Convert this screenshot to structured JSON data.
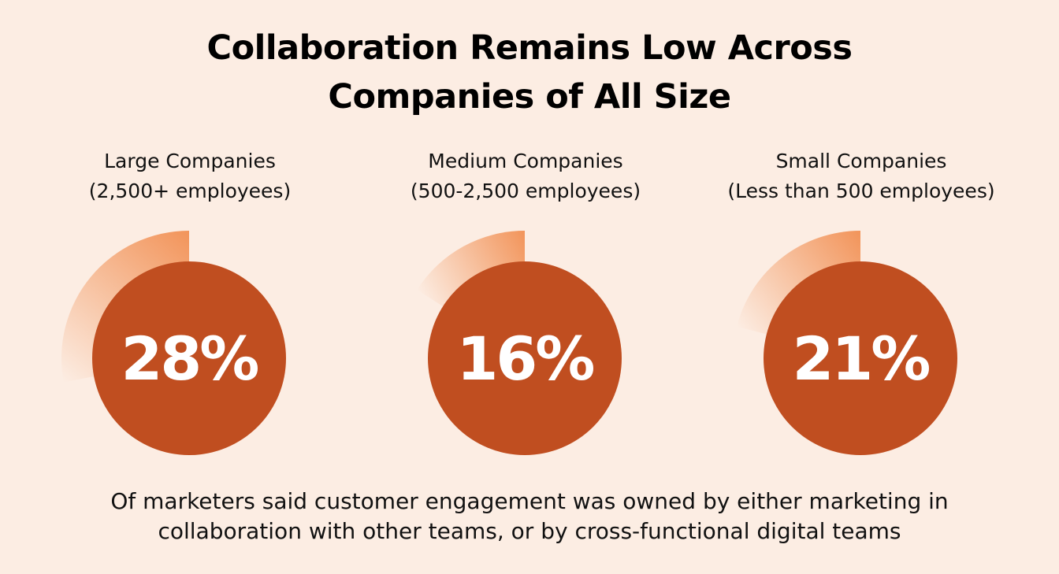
{
  "title": {
    "line1": "Collaboration Remains Low Across",
    "line2": "Companies of All Size"
  },
  "colors": {
    "background": "#FCEDE3",
    "circle": "#C04E20",
    "arc_start": "#F2945A",
    "arc_end": "#FCEDE3",
    "value_text": "#FFFFFF"
  },
  "chart_data": {
    "type": "pie",
    "unit": "%",
    "items": [
      {
        "label_line1": "Large Companies",
        "label_line2": "(2,500+ employees)",
        "value": 28,
        "value_label": "28%"
      },
      {
        "label_line1": "Medium Companies",
        "label_line2": "(500-2,500 employees)",
        "value": 16,
        "value_label": "16%"
      },
      {
        "label_line1": "Small Companies",
        "label_line2": "(Less than 500 employees)",
        "value": 21,
        "value_label": "21%"
      }
    ]
  },
  "footer": {
    "line1": "Of marketers said customer engagement was owned by either marketing in",
    "line2": "collaboration with other teams, or by cross-functional digital teams"
  }
}
